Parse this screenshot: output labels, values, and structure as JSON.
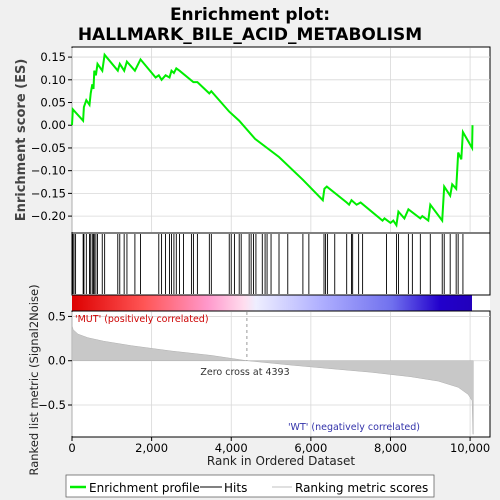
{
  "chart_data": {
    "type": "line",
    "title_line1": "Enrichment plot:",
    "title_line2": "HALLMARK_BILE_ACID_METABOLISM",
    "top_panel": {
      "ylabel": "Enrichment score (ES)",
      "ylim": [
        -0.235,
        0.17
      ],
      "yticks": [
        0.15,
        0.1,
        0.05,
        0.0,
        -0.05,
        -0.1,
        -0.15,
        -0.2
      ],
      "ytick_labels": [
        "0.15",
        "0.10",
        "0.05",
        "0.00",
        "−0.05",
        "−0.10",
        "−0.15",
        "−0.20"
      ],
      "grid": true,
      "line_color": "#00ee00",
      "series_name": "Enrichment profile",
      "es_points": [
        [
          0,
          0.0
        ],
        [
          20,
          0.035
        ],
        [
          280,
          0.01
        ],
        [
          300,
          0.04
        ],
        [
          360,
          0.055
        ],
        [
          440,
          0.045
        ],
        [
          470,
          0.07
        ],
        [
          510,
          0.09
        ],
        [
          540,
          0.08
        ],
        [
          560,
          0.12
        ],
        [
          600,
          0.11
        ],
        [
          640,
          0.135
        ],
        [
          760,
          0.12
        ],
        [
          820,
          0.155
        ],
        [
          1150,
          0.12
        ],
        [
          1200,
          0.135
        ],
        [
          1310,
          0.12
        ],
        [
          1380,
          0.14
        ],
        [
          1580,
          0.12
        ],
        [
          1720,
          0.145
        ],
        [
          2100,
          0.105
        ],
        [
          2180,
          0.11
        ],
        [
          2250,
          0.1
        ],
        [
          2350,
          0.11
        ],
        [
          2450,
          0.105
        ],
        [
          2500,
          0.12
        ],
        [
          2560,
          0.115
        ],
        [
          2620,
          0.125
        ],
        [
          2700,
          0.12
        ],
        [
          3050,
          0.095
        ],
        [
          3150,
          0.095
        ],
        [
          3450,
          0.07
        ],
        [
          3500,
          0.075
        ],
        [
          3950,
          0.03
        ],
        [
          4200,
          0.01
        ],
        [
          4600,
          -0.03
        ],
        [
          5200,
          -0.07
        ],
        [
          5800,
          -0.12
        ],
        [
          6300,
          -0.165
        ],
        [
          6340,
          -0.14
        ],
        [
          6400,
          -0.135
        ],
        [
          6900,
          -0.17
        ],
        [
          6960,
          -0.175
        ],
        [
          7020,
          -0.165
        ],
        [
          7150,
          -0.175
        ],
        [
          7250,
          -0.17
        ],
        [
          7800,
          -0.21
        ],
        [
          7850,
          -0.205
        ],
        [
          8000,
          -0.215
        ],
        [
          8070,
          -0.21
        ],
        [
          8150,
          -0.22
        ],
        [
          8200,
          -0.19
        ],
        [
          8350,
          -0.205
        ],
        [
          8450,
          -0.185
        ],
        [
          8750,
          -0.205
        ],
        [
          8800,
          -0.2
        ],
        [
          8950,
          -0.21
        ],
        [
          9000,
          -0.175
        ],
        [
          9300,
          -0.21
        ],
        [
          9350,
          -0.135
        ],
        [
          9500,
          -0.155
        ],
        [
          9550,
          -0.13
        ],
        [
          9650,
          -0.14
        ],
        [
          9700,
          -0.06
        ],
        [
          9780,
          -0.075
        ],
        [
          9820,
          -0.015
        ],
        [
          10050,
          -0.05
        ],
        [
          10060,
          0.0
        ]
      ]
    },
    "hits": {
      "legend_label": "Hits",
      "positions": [
        20,
        50,
        90,
        280,
        300,
        360,
        440,
        470,
        510,
        540,
        560,
        600,
        640,
        760,
        820,
        1150,
        1200,
        1310,
        1380,
        1580,
        1720,
        2180,
        2250,
        2350,
        2450,
        2500,
        2560,
        2620,
        2700,
        2800,
        3000,
        3050,
        3150,
        3450,
        3500,
        3950,
        4000,
        4080,
        4200,
        4250,
        4450,
        4500,
        4560,
        4620,
        4780,
        4850,
        4900,
        5000,
        5200,
        5420,
        5800,
        5950,
        6330,
        6370,
        6420,
        6600,
        6900,
        7020,
        7050,
        7200,
        7300,
        7900,
        8150,
        8200,
        8450,
        8550,
        8750,
        9000,
        9300,
        9350,
        9500,
        9650,
        9700,
        9820
      ]
    },
    "bottom_panel": {
      "ylabel": "Ranked list metric (Signal2Noise)",
      "xlabel": "Rank in Ordered Dataset",
      "xlim": [
        0,
        10500
      ],
      "ylim": [
        -0.85,
        0.55
      ],
      "xticks": [
        0,
        2000,
        4000,
        6000,
        8000,
        10000
      ],
      "xtick_labels": [
        "0",
        "2,000",
        "4,000",
        "6,000",
        "8,000",
        "10,000"
      ],
      "yticks": [
        0.5,
        0.0,
        -0.5
      ],
      "ytick_labels": [
        "0.5",
        "0.0",
        "−0.5"
      ],
      "zero_cross_rank": 4393,
      "zero_cross_label": "Zero cross at 4393",
      "pos_label": "'MUT' (positively correlated)",
      "neg_label": "'WT' (negatively correlated)",
      "fill_color": "#c8c8c8",
      "series_name": "Ranking metric scores",
      "metric_curve": [
        [
          0,
          0.4
        ],
        [
          30,
          0.35
        ],
        [
          150,
          0.3
        ],
        [
          400,
          0.26
        ],
        [
          800,
          0.22
        ],
        [
          1500,
          0.17
        ],
        [
          2500,
          0.11
        ],
        [
          3500,
          0.06
        ],
        [
          4393,
          0.0
        ],
        [
          5500,
          -0.05
        ],
        [
          6500,
          -0.09
        ],
        [
          7500,
          -0.13
        ],
        [
          8500,
          -0.18
        ],
        [
          9200,
          -0.23
        ],
        [
          9700,
          -0.3
        ],
        [
          9950,
          -0.38
        ],
        [
          10050,
          -0.45
        ],
        [
          10070,
          -0.83
        ],
        [
          10080,
          -0.83
        ]
      ]
    },
    "total_ranks": 10080,
    "legend": {
      "entries": [
        "Enrichment profile",
        "Hits",
        "Ranking metric scores"
      ]
    }
  }
}
